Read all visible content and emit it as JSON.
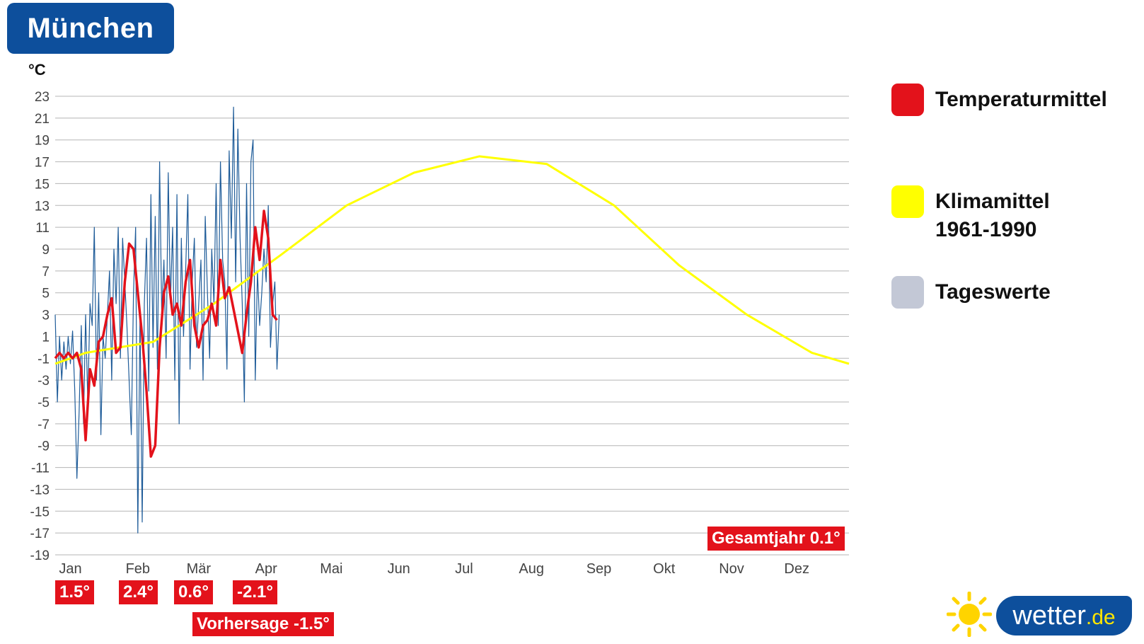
{
  "header": {
    "city": "München",
    "unit": "°C"
  },
  "legend": [
    {
      "label": "Temperaturmittel",
      "color": "#e3121b"
    },
    {
      "label": "Klimamittel\n1961-1990",
      "color": "#ffff00"
    },
    {
      "label": "Tageswerte",
      "color": "#c3c8d6"
    }
  ],
  "monthly_means": [
    "1.5°",
    "2.4°",
    "0.6°",
    "-2.1°"
  ],
  "forecast_label": "Vorhersage -1.5°",
  "annual_label": "Gesamtjahr 0.1°",
  "logo": {
    "name": "wetter",
    "tld": ".de",
    "sun_icon": "sun-icon"
  },
  "chart_data": {
    "type": "line",
    "ylim": [
      -19,
      23
    ],
    "yticks": [
      23,
      21,
      19,
      17,
      15,
      13,
      11,
      9,
      7,
      5,
      3,
      1,
      -1,
      -3,
      -5,
      -7,
      -9,
      -11,
      -13,
      -15,
      -17,
      -19
    ],
    "ylabel": "°C",
    "months": [
      "Jan",
      "Feb",
      "Mär",
      "Apr",
      "Mai",
      "Jun",
      "Jul",
      "Aug",
      "Sep",
      "Okt",
      "Nov",
      "Dez"
    ],
    "grid": true,
    "legend_position": "right",
    "series": [
      {
        "name": "Klimamittel 1961-1990",
        "color": "#ffff00",
        "x_day": [
          1,
          15,
          46,
          74,
          105,
          135,
          166,
          196,
          227,
          258,
          288,
          319,
          349,
          366
        ],
        "y": [
          -1.5,
          -0.5,
          0.5,
          4.0,
          8.5,
          13.0,
          16.0,
          17.5,
          16.8,
          13.0,
          7.5,
          3.0,
          -0.5,
          -1.5
        ]
      },
      {
        "name": "Temperaturmittel",
        "color": "#e3121b",
        "x_day": [
          1,
          3,
          5,
          7,
          9,
          11,
          13,
          15,
          17,
          19,
          21,
          23,
          25,
          27,
          29,
          31,
          33,
          35,
          37,
          39,
          41,
          43,
          45,
          47,
          49,
          51,
          53,
          55,
          57,
          59,
          61,
          63,
          65,
          67,
          69,
          71,
          73,
          75,
          77,
          79,
          81,
          83,
          85,
          87,
          89,
          91,
          93,
          95,
          97,
          99,
          101,
          103
        ],
        "y": [
          -1,
          -0.5,
          -1,
          -0.5,
          -1,
          -0.5,
          -2,
          -8.5,
          -2,
          -3.5,
          0.5,
          1,
          3,
          4.5,
          -0.5,
          0,
          6,
          9.5,
          9,
          5,
          1,
          -4,
          -10,
          -9,
          0,
          5,
          6.5,
          3,
          4,
          2,
          6,
          8,
          2,
          0,
          2,
          2.5,
          4,
          2,
          8,
          4.5,
          5.5,
          3.5,
          1.5,
          -0.5,
          3,
          6,
          11,
          8,
          12.5,
          10,
          3,
          2.5
        ]
      },
      {
        "name": "Tageswerte",
        "color": "#1f5c99",
        "x_day": [
          1,
          2,
          3,
          4,
          5,
          6,
          7,
          8,
          9,
          10,
          11,
          12,
          13,
          14,
          15,
          16,
          17,
          18,
          19,
          20,
          21,
          22,
          23,
          24,
          25,
          26,
          27,
          28,
          29,
          30,
          31,
          32,
          33,
          34,
          35,
          36,
          37,
          38,
          39,
          40,
          41,
          42,
          43,
          44,
          45,
          46,
          47,
          48,
          49,
          50,
          51,
          52,
          53,
          54,
          55,
          56,
          57,
          58,
          59,
          60,
          61,
          62,
          63,
          64,
          65,
          66,
          67,
          68,
          69,
          70,
          71,
          72,
          73,
          74,
          75,
          76,
          77,
          78,
          79,
          80,
          81,
          82,
          83,
          84,
          85,
          86,
          87,
          88,
          89,
          90,
          91,
          92,
          93,
          94,
          95,
          96,
          97,
          98,
          99,
          100,
          101,
          102,
          103,
          104
        ],
        "y": [
          3,
          -5,
          1,
          -3,
          0.5,
          -2,
          1,
          -1.5,
          1.5,
          -4,
          -12,
          -6,
          2,
          -7,
          3,
          -5,
          4,
          2,
          11,
          -3,
          5,
          -8,
          1,
          -1,
          3,
          7,
          -3,
          9,
          4,
          11,
          -1,
          10,
          6,
          2,
          -3,
          -8,
          5,
          11,
          -17,
          3,
          -16,
          4,
          10,
          -4,
          14,
          0,
          12,
          -2,
          17,
          3,
          8,
          -1,
          16,
          4,
          11,
          -3,
          14,
          -7,
          10,
          1,
          7,
          14,
          -2,
          6,
          10,
          0,
          4,
          8,
          -3,
          12,
          5,
          -1,
          9,
          4,
          15,
          2,
          17,
          8,
          6,
          -2,
          18,
          10,
          22,
          6,
          20,
          10,
          4,
          -5,
          15,
          1,
          17,
          19,
          -3,
          7,
          2,
          5,
          9,
          6,
          13,
          0,
          4,
          6,
          -2,
          3
        ]
      }
    ]
  }
}
